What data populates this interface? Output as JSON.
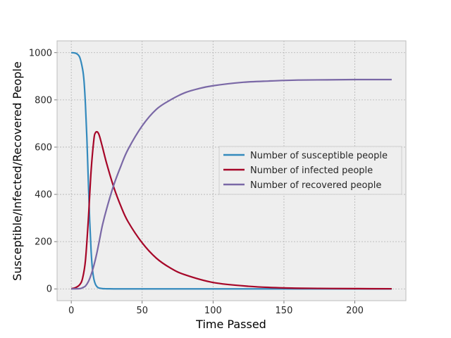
{
  "chart_data": {
    "type": "line",
    "title": "",
    "xlabel": "Time Passed",
    "ylabel": "Susceptible/Infected/Recovered People",
    "xlim": [
      -10,
      236
    ],
    "ylim": [
      -50,
      1050
    ],
    "xticks": [
      0,
      50,
      100,
      150,
      200
    ],
    "yticks": [
      0,
      200,
      400,
      600,
      800,
      1000
    ],
    "grid": true,
    "legend_position": "center-right",
    "series": [
      {
        "name": "Number of susceptible people",
        "color": "#348abd",
        "x": [
          0,
          2,
          4,
          6,
          8,
          9,
          10,
          11,
          12,
          13,
          14,
          15,
          16,
          17,
          18,
          19,
          20,
          22,
          24,
          26,
          30,
          40,
          60,
          100,
          150,
          226
        ],
        "y": [
          1000,
          999,
          995,
          980,
          930,
          880,
          780,
          640,
          460,
          290,
          160,
          80,
          40,
          20,
          10,
          5,
          3,
          1,
          0.5,
          0.3,
          0,
          0,
          0,
          0,
          0,
          0
        ]
      },
      {
        "name": "Number of infected people",
        "color": "#a60628",
        "x": [
          0,
          3,
          6,
          8,
          10,
          12,
          14,
          16,
          17,
          18,
          19,
          20,
          22,
          25,
          30,
          35,
          40,
          50,
          60,
          70,
          80,
          100,
          125,
          150,
          175,
          200,
          226
        ],
        "y": [
          1,
          5,
          18,
          45,
          120,
          290,
          500,
          635,
          660,
          665,
          660,
          645,
          600,
          530,
          430,
          350,
          285,
          195,
          130,
          88,
          60,
          27,
          11,
          4,
          2,
          1,
          0.5
        ]
      },
      {
        "name": "Number of recovered people",
        "color": "#7a68a6",
        "x": [
          0,
          6,
          8,
          10,
          12,
          14,
          16,
          18,
          20,
          22,
          25,
          30,
          35,
          40,
          50,
          60,
          70,
          80,
          90,
          100,
          120,
          140,
          160,
          180,
          200,
          226
        ],
        "y": [
          0,
          1,
          5,
          12,
          30,
          60,
          100,
          150,
          210,
          270,
          340,
          440,
          520,
          590,
          690,
          760,
          800,
          830,
          848,
          860,
          874,
          880,
          884,
          885,
          886,
          886
        ]
      }
    ]
  }
}
